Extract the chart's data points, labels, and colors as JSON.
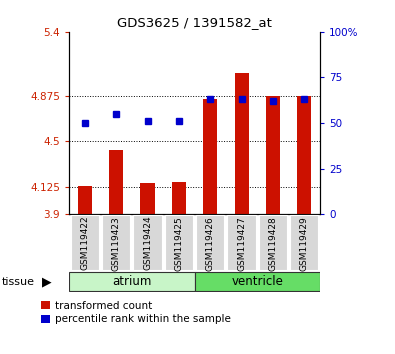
{
  "title": "GDS3625 / 1391582_at",
  "samples": [
    "GSM119422",
    "GSM119423",
    "GSM119424",
    "GSM119425",
    "GSM119426",
    "GSM119427",
    "GSM119428",
    "GSM119429"
  ],
  "tissue_groups": [
    {
      "label": "atrium",
      "indices": [
        0,
        1,
        2,
        3
      ],
      "color": "#c8f5c8"
    },
    {
      "label": "ventricle",
      "indices": [
        4,
        5,
        6,
        7
      ],
      "color": "#66dd66"
    }
  ],
  "transformed_count": [
    4.13,
    4.43,
    4.155,
    4.165,
    4.845,
    5.06,
    4.875,
    4.875
  ],
  "percentile_rank": [
    50,
    55,
    51,
    51,
    63,
    63,
    62,
    63
  ],
  "bar_bottom": 3.9,
  "ylim_left": [
    3.9,
    5.4
  ],
  "ylim_right": [
    0,
    100
  ],
  "yticks_left": [
    3.9,
    4.125,
    4.5,
    4.875,
    5.4
  ],
  "yticks_right": [
    0,
    25,
    50,
    75,
    100
  ],
  "ytick_labels_left": [
    "3.9",
    "4.125",
    "4.5",
    "4.875",
    "5.4"
  ],
  "ytick_labels_right": [
    "0",
    "25",
    "50",
    "75",
    "100%"
  ],
  "hlines": [
    4.125,
    4.5,
    4.875
  ],
  "bar_color": "#cc1100",
  "dot_color": "#0000cc",
  "bar_width": 0.45,
  "legend_labels": [
    "transformed count",
    "percentile rank within the sample"
  ],
  "legend_colors": [
    "#cc1100",
    "#0000cc"
  ],
  "ylabel_left_color": "#cc2200",
  "ylabel_right_color": "#0000cc",
  "tissue_label": "tissue",
  "background_color": "#ffffff",
  "plot_bg_color": "#ffffff",
  "xtick_bg_color": "#d8d8d8"
}
